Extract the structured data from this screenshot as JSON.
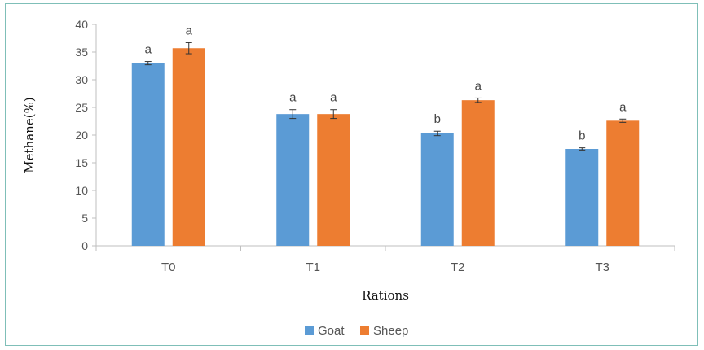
{
  "chart_data": {
    "type": "bar",
    "title": "",
    "xlabel": "Rations",
    "ylabel": "Methane(%)",
    "ylim": [
      0,
      40
    ],
    "yticks": [
      0,
      5,
      10,
      15,
      20,
      25,
      30,
      35,
      40
    ],
    "categories": [
      "T0",
      "T1",
      "T2",
      "T3"
    ],
    "series": [
      {
        "name": "Goat",
        "color": "#5b9bd5",
        "values": [
          33.0,
          23.8,
          20.3,
          17.5
        ],
        "errors": [
          0.3,
          0.8,
          0.4,
          0.2
        ],
        "significance": [
          "a",
          "a",
          "b",
          "b"
        ]
      },
      {
        "name": "Sheep",
        "color": "#ed7d31",
        "values": [
          35.7,
          23.8,
          26.3,
          22.6
        ],
        "errors": [
          1.0,
          0.8,
          0.4,
          0.3
        ],
        "significance": [
          "a",
          "a",
          "a",
          "a"
        ]
      }
    ],
    "legend_position": "bottom",
    "grid": false
  }
}
